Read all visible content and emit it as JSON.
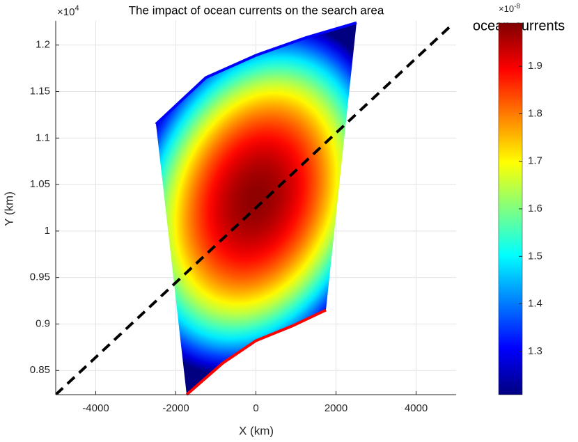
{
  "chart_data": {
    "type": "field",
    "title": "The impact of ocean currents on the search area",
    "xlabel": "X (km)",
    "ylabel": "Y (km)",
    "y_multiplier": "×10",
    "y_power": "4",
    "xlim": [
      -5000,
      5000
    ],
    "xticks": [
      -4000,
      -2000,
      0,
      2000,
      4000
    ],
    "ylim": [
      0.824,
      1.226
    ],
    "yticks": [
      0.85,
      0.9,
      0.95,
      1,
      1.05,
      1.1,
      1.15,
      1.2
    ],
    "grid": true,
    "field": {
      "center_x": 0,
      "center_y": 1.035,
      "peak": 1.98
    },
    "boundaries": [
      {
        "color": "#0000ff",
        "x": [
          -2496,
          -1250,
          0,
          1250,
          2513
        ],
        "y": [
          1.115,
          1.165,
          1.189,
          1.208,
          1.224
        ]
      },
      {
        "color": "#ff0000",
        "x": [
          -1730,
          -826,
          0,
          913,
          1748
        ],
        "y": [
          0.824,
          0.858,
          0.882,
          0.898,
          0.915
        ]
      }
    ],
    "trend_line": {
      "color": "#000000",
      "x": [
        -5000,
        4900
      ],
      "y": [
        0.824,
        1.222
      ]
    },
    "colorbar": {
      "label": "ocean currents",
      "multiplier": "×10",
      "power": "-8",
      "clim": [
        1.209,
        1.991
      ],
      "ticks": [
        1.3,
        1.4,
        1.5,
        1.6,
        1.7,
        1.8,
        1.9
      ]
    }
  }
}
